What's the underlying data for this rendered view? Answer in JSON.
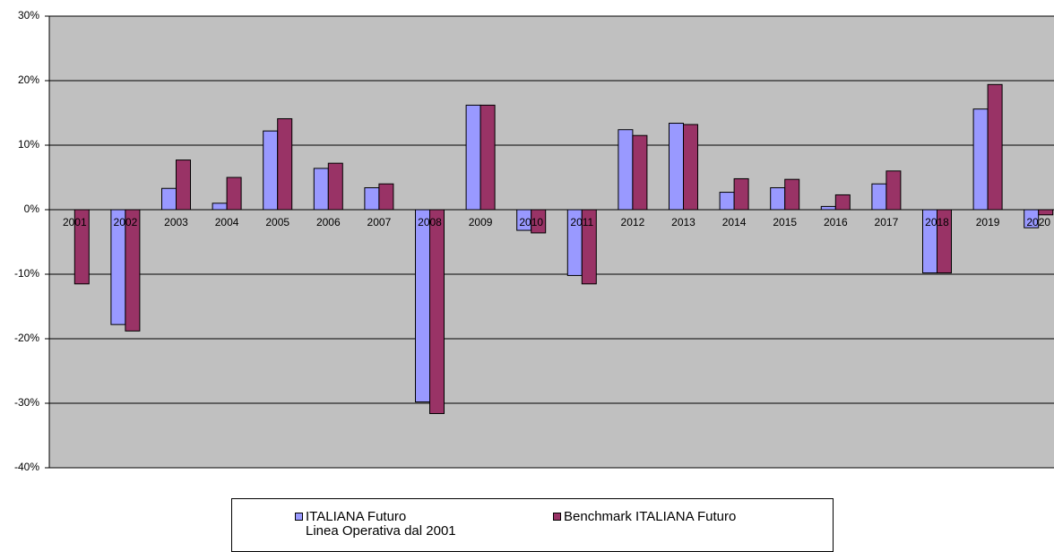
{
  "chart_data": {
    "type": "bar",
    "categories": [
      "2001",
      "2002",
      "2003",
      "2004",
      "2005",
      "2006",
      "2007",
      "2008",
      "2009",
      "2010",
      "2011",
      "2012",
      "2013",
      "2014",
      "2015",
      "2016",
      "2017",
      "2018",
      "2019",
      "2020"
    ],
    "series": [
      {
        "name": "ITALIANA Futuro\nLinea Operativa dal 2001",
        "color": "#9999ff",
        "values": [
          null,
          -17.8,
          3.3,
          1.0,
          12.2,
          6.4,
          3.4,
          -29.8,
          16.2,
          -3.2,
          -10.2,
          12.4,
          13.4,
          2.7,
          3.4,
          0.5,
          4.0,
          -9.8,
          15.6,
          -2.8
        ]
      },
      {
        "name": "Benchmark ITALIANA Futuro",
        "color": "#993366",
        "values": [
          -11.5,
          -18.8,
          7.7,
          5.0,
          14.1,
          7.2,
          4.0,
          -31.6,
          16.2,
          -3.6,
          -11.5,
          11.5,
          13.2,
          4.8,
          4.7,
          2.3,
          6.0,
          -9.8,
          19.4,
          -0.8
        ]
      }
    ],
    "ylim": [
      -40,
      30
    ],
    "yticks": [
      {
        "value": -40,
        "label": "-40%"
      },
      {
        "value": -30,
        "label": "-30%"
      },
      {
        "value": -20,
        "label": "-20%"
      },
      {
        "value": -10,
        "label": "-10%"
      },
      {
        "value": 0,
        "label": "0%"
      },
      {
        "value": 10,
        "label": "10%"
      },
      {
        "value": 20,
        "label": "20%"
      },
      {
        "value": 30,
        "label": "30%"
      }
    ],
    "grid": true
  }
}
